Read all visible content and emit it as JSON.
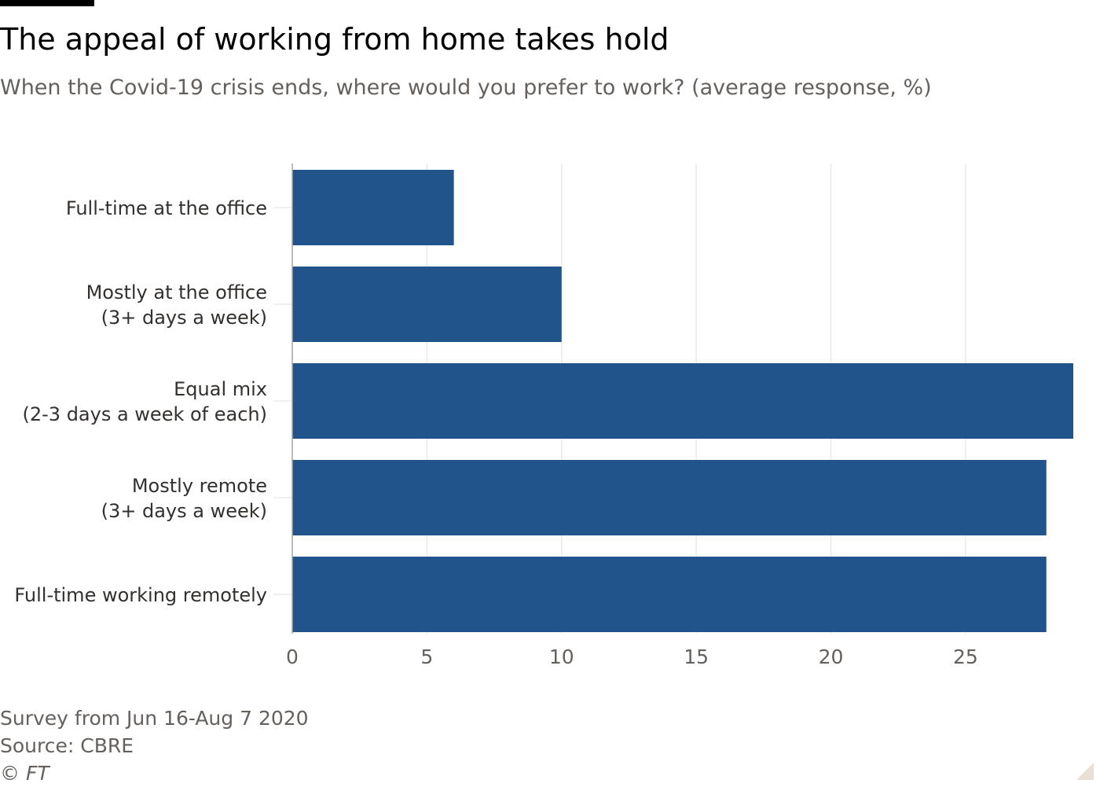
{
  "header": {
    "title": "The appeal of working from home takes hold",
    "subtitle": "When the Covid-19 crisis ends, where would you prefer to work? (average response, %)"
  },
  "footer": {
    "note": "Survey from Jun 16-Aug 7 2020",
    "source": "Source: CBRE",
    "copyright": "© FT"
  },
  "colors": {
    "bar": "#21548a",
    "grid": "#e6e0da",
    "axis": "#a7a3a0",
    "tick_text": "#66605c",
    "category_text": "#33302e"
  },
  "chart_data": {
    "type": "bar",
    "orientation": "horizontal",
    "categories": [
      [
        "Full-time at the office"
      ],
      [
        "Mostly at the office",
        "(3+ days a week)"
      ],
      [
        "Equal mix",
        "(2-3 days a week of each)"
      ],
      [
        "Mostly remote",
        "(3+ days a week)"
      ],
      [
        "Full-time working remotely"
      ]
    ],
    "values": [
      6,
      10,
      29,
      28,
      28
    ],
    "xlim": [
      0,
      29
    ],
    "xticks": [
      0,
      5,
      10,
      15,
      20,
      25
    ],
    "grid": true,
    "title": "",
    "xlabel": "",
    "ylabel": ""
  }
}
